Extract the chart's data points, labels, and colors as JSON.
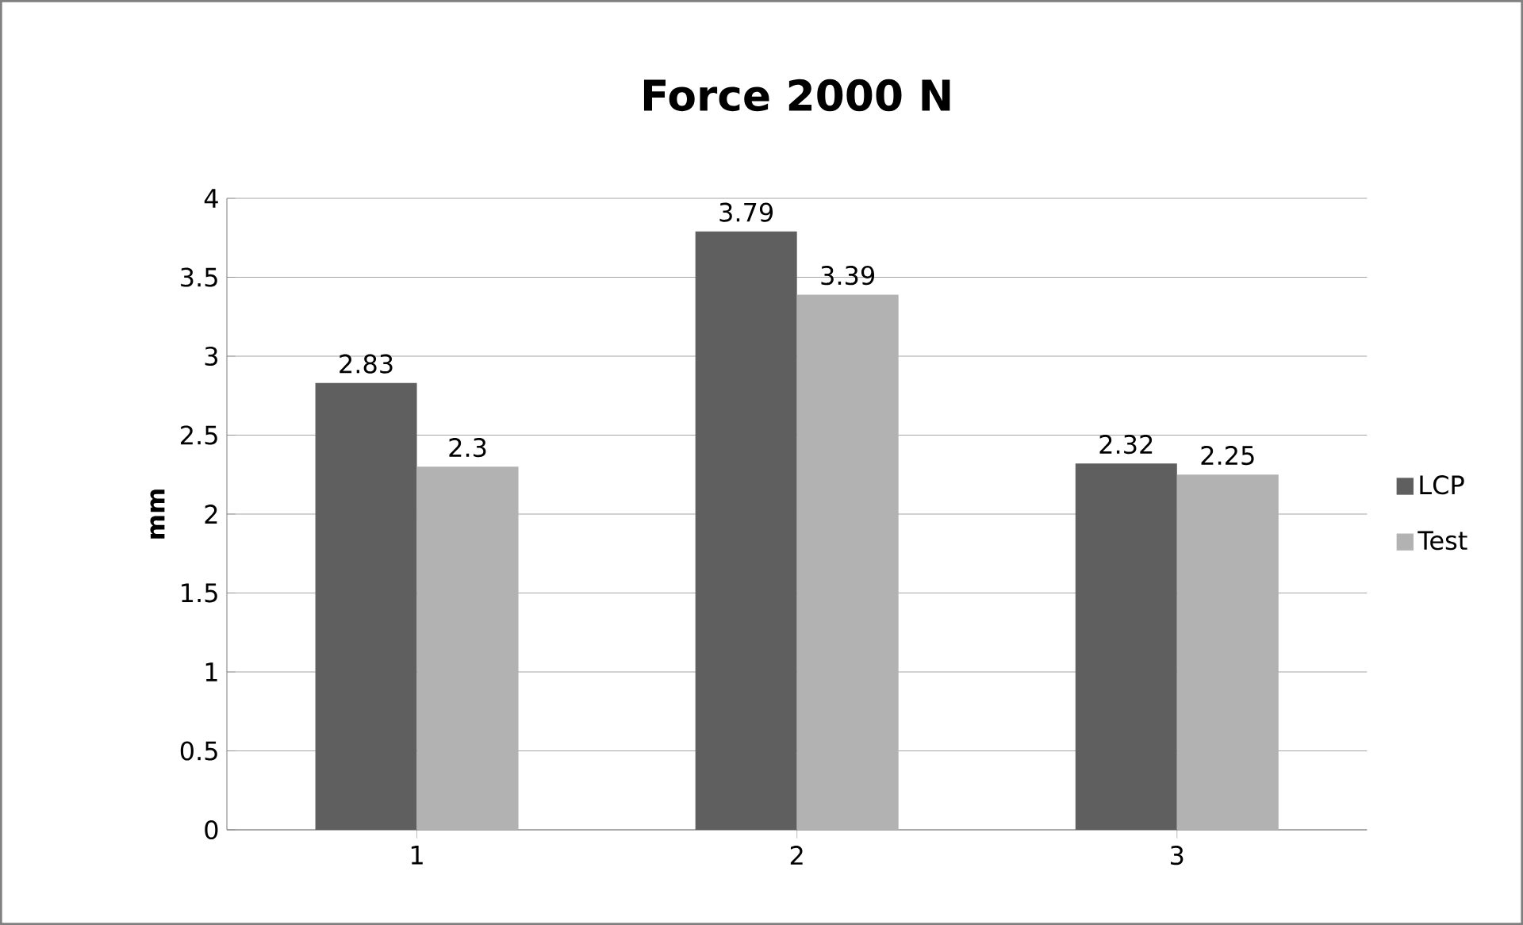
{
  "chart_data": {
    "type": "bar",
    "title": "Force 2000 N",
    "ylabel": "mm",
    "categories": [
      "1",
      "2",
      "3"
    ],
    "series": [
      {
        "name": "LCP",
        "color": "#5f5f5f",
        "values": [
          2.83,
          3.79,
          2.32
        ]
      },
      {
        "name": "Test",
        "color": "#b2b2b2",
        "values": [
          2.3,
          3.39,
          2.25
        ]
      }
    ],
    "ylim": [
      0,
      4
    ],
    "yticks": [
      0,
      0.5,
      1,
      1.5,
      2,
      2.5,
      3,
      3.5,
      4
    ],
    "grid": "y",
    "legend": "right",
    "data_labels": true
  }
}
